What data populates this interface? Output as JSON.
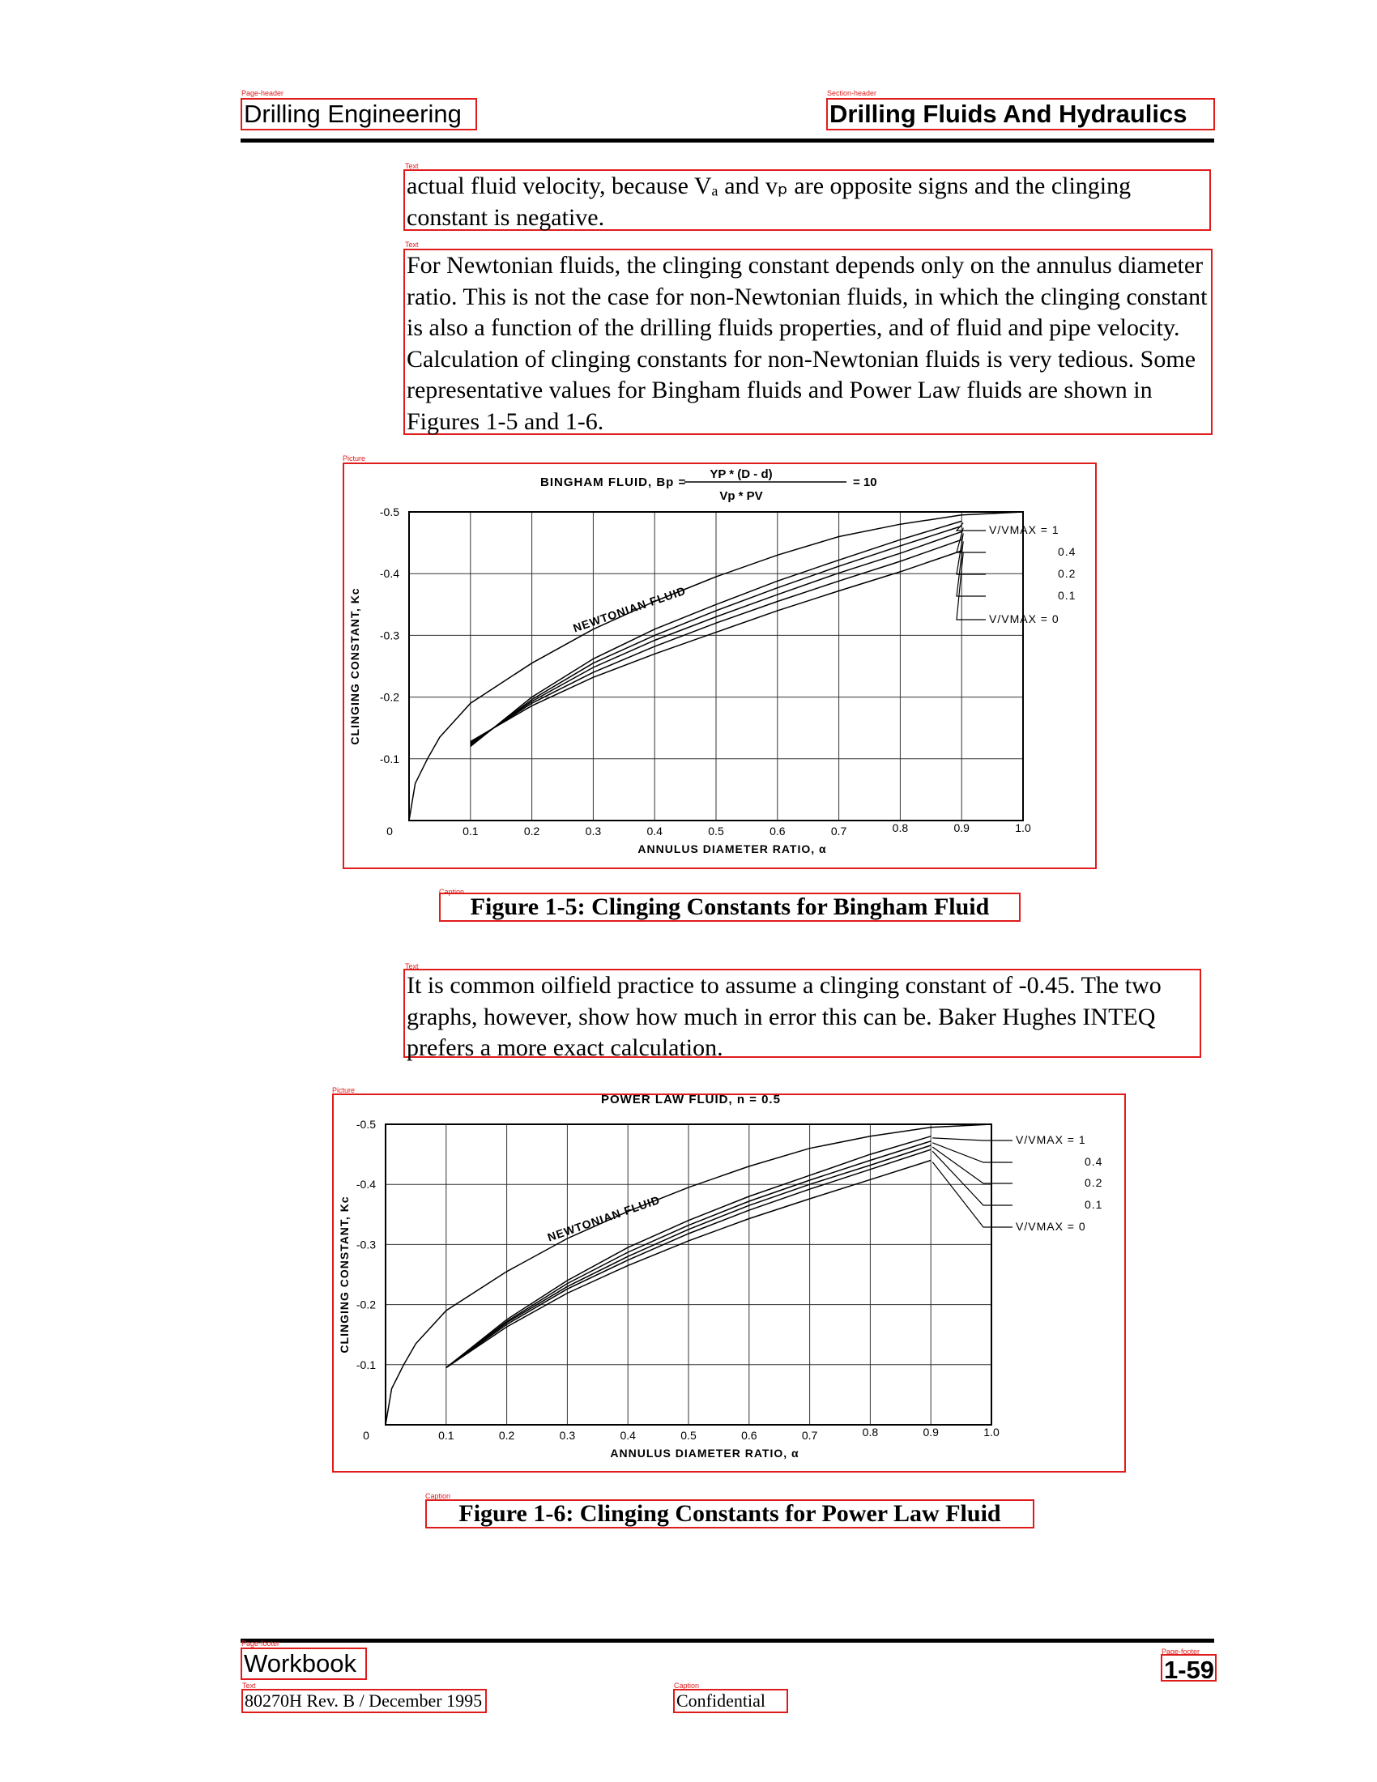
{
  "header": {
    "left": "Drilling Engineering",
    "right": "Drilling Fluids And Hydraulics"
  },
  "paragraphs": {
    "p1": "actual fluid velocity, because Vₐ and vₚ are opposite signs and the clinging constant is negative.",
    "p2": "For Newtonian fluids, the clinging constant depends only on the annulus diameter ratio. This is not the case for non-Newtonian fluids, in which the clinging constant is also a function of the drilling fluids properties, and of fluid and pipe velocity. Calculation of clinging constants for non-Newtonian fluids is very tedious. Some representative values for Bingham fluids and Power Law fluids are shown in Figures 1-5 and 1-6.",
    "p3": "It is common oilfield practice to assume a clinging constant of -0.45. The two graphs, however, show how much in error this can be. Baker Hughes INTEQ prefers a more exact calculation."
  },
  "captions": {
    "fig1": "Figure 1-5: Clinging Constants for Bingham Fluid",
    "fig2": "Figure 1-6: Clinging Constants for Power Law Fluid"
  },
  "footer": {
    "left": "Workbook",
    "right": "1-59",
    "doc_id": "80270H Rev. B / December 1995",
    "center": "Confidential"
  },
  "layout_tags": {
    "page_header": "Page-header",
    "section_header": "Section-header",
    "text": "Text",
    "picture": "Picture",
    "caption": "Caption",
    "page_footer": "Page-footer"
  },
  "chart_data": [
    {
      "type": "line",
      "title": "BINGHAM FLUID, Bp = YP * (D - d) / Vp * PV = 10",
      "title_parts": {
        "prefix": "BINGHAM FLUID, Bp =",
        "numerator": "YP * (D - d)",
        "denominator": "Vp * PV",
        "value": "= 10"
      },
      "xlabel": "ANNULUS DIAMETER RATIO, α",
      "ylabel": "CLINGING CONSTANT, Kc",
      "xlim": [
        0,
        1.0
      ],
      "ylim": [
        0,
        -0.5
      ],
      "x_ticks": [
        "0",
        "0.1",
        "0.2",
        "0.3",
        "0.4",
        "0.5",
        "0.6",
        "0.7",
        "0.8",
        "0.9",
        "1.0"
      ],
      "y_ticks": [
        "0",
        "-0.1",
        "-0.2",
        "-0.3",
        "-0.4",
        "-0.5"
      ],
      "grid": true,
      "annotation": "NEWTONIAN FLUID",
      "series_labels": [
        "V/VMAX = 1",
        "0.4",
        "0.2",
        "0.1",
        "V/VMAX = 0"
      ],
      "newtonian": {
        "x": [
          0,
          0.01,
          0.03,
          0.05,
          0.1,
          0.2,
          0.3,
          0.4,
          0.5,
          0.6,
          0.7,
          0.8,
          0.9,
          1.0
        ],
        "y": [
          0,
          -0.06,
          -0.1,
          -0.135,
          -0.19,
          -0.255,
          -0.31,
          -0.355,
          -0.395,
          -0.43,
          -0.46,
          -0.48,
          -0.495,
          -0.5
        ]
      },
      "curves": [
        {
          "x": [
            0.1,
            0.2,
            0.3,
            0.4,
            0.5,
            0.6,
            0.7,
            0.8,
            0.9
          ],
          "y": [
            -0.12,
            -0.2,
            -0.262,
            -0.31,
            -0.35,
            -0.388,
            -0.422,
            -0.455,
            -0.485
          ]
        },
        {
          "x": [
            0.1,
            0.2,
            0.3,
            0.4,
            0.5,
            0.6,
            0.7,
            0.8,
            0.9
          ],
          "y": [
            -0.122,
            -0.196,
            -0.255,
            -0.3,
            -0.34,
            -0.377,
            -0.412,
            -0.445,
            -0.477
          ]
        },
        {
          "x": [
            0.1,
            0.2,
            0.3,
            0.4,
            0.5,
            0.6,
            0.7,
            0.8,
            0.9
          ],
          "y": [
            -0.124,
            -0.193,
            -0.248,
            -0.292,
            -0.33,
            -0.366,
            -0.401,
            -0.433,
            -0.468
          ]
        },
        {
          "x": [
            0.1,
            0.2,
            0.3,
            0.4,
            0.5,
            0.6,
            0.7,
            0.8,
            0.9
          ],
          "y": [
            -0.126,
            -0.19,
            -0.24,
            -0.282,
            -0.32,
            -0.355,
            -0.388,
            -0.42,
            -0.455
          ]
        },
        {
          "x": [
            0.1,
            0.2,
            0.3,
            0.4,
            0.5,
            0.6,
            0.7,
            0.8,
            0.9
          ],
          "y": [
            -0.128,
            -0.186,
            -0.232,
            -0.27,
            -0.305,
            -0.34,
            -0.372,
            -0.403,
            -0.437
          ]
        }
      ]
    },
    {
      "type": "line",
      "title": "POWER LAW FLUID, n = 0.5",
      "xlabel": "ANNULUS DIAMETER RATIO, α",
      "ylabel": "CLINGING CONSTANT, Kc",
      "xlim": [
        0,
        1.0
      ],
      "ylim": [
        0,
        -0.5
      ],
      "x_ticks": [
        "0",
        "0.1",
        "0.2",
        "0.3",
        "0.4",
        "0.5",
        "0.6",
        "0.7",
        "0.8",
        "0.9",
        "1.0"
      ],
      "y_ticks": [
        "0",
        "-0.1",
        "-0.2",
        "-0.3",
        "-0.4",
        "-0.5"
      ],
      "grid": true,
      "annotation": "NEWTONIAN FLUID",
      "series_labels": [
        "V/VMAX = 1",
        "0.4",
        "0.2",
        "0.1",
        "V/VMAX = 0"
      ],
      "newtonian": {
        "x": [
          0,
          0.01,
          0.03,
          0.05,
          0.1,
          0.2,
          0.3,
          0.4,
          0.5,
          0.6,
          0.7,
          0.8,
          0.9,
          1.0
        ],
        "y": [
          0,
          -0.06,
          -0.1,
          -0.135,
          -0.19,
          -0.255,
          -0.31,
          -0.355,
          -0.395,
          -0.43,
          -0.46,
          -0.48,
          -0.495,
          -0.5
        ]
      },
      "curves": [
        {
          "x": [
            0.1,
            0.2,
            0.3,
            0.4,
            0.5,
            0.6,
            0.7,
            0.8,
            0.9
          ],
          "y": [
            -0.095,
            -0.175,
            -0.24,
            -0.295,
            -0.34,
            -0.38,
            -0.415,
            -0.45,
            -0.48
          ]
        },
        {
          "x": [
            0.1,
            0.2,
            0.3,
            0.4,
            0.5,
            0.6,
            0.7,
            0.8,
            0.9
          ],
          "y": [
            -0.095,
            -0.172,
            -0.235,
            -0.287,
            -0.332,
            -0.372,
            -0.407,
            -0.44,
            -0.472
          ]
        },
        {
          "x": [
            0.1,
            0.2,
            0.3,
            0.4,
            0.5,
            0.6,
            0.7,
            0.8,
            0.9
          ],
          "y": [
            -0.095,
            -0.17,
            -0.23,
            -0.28,
            -0.325,
            -0.365,
            -0.4,
            -0.432,
            -0.465
          ]
        },
        {
          "x": [
            0.1,
            0.2,
            0.3,
            0.4,
            0.5,
            0.6,
            0.7,
            0.8,
            0.9
          ],
          "y": [
            -0.095,
            -0.167,
            -0.226,
            -0.274,
            -0.318,
            -0.357,
            -0.392,
            -0.425,
            -0.458
          ]
        },
        {
          "x": [
            0.1,
            0.2,
            0.3,
            0.4,
            0.5,
            0.6,
            0.7,
            0.8,
            0.9
          ],
          "y": [
            -0.095,
            -0.163,
            -0.219,
            -0.265,
            -0.306,
            -0.343,
            -0.376,
            -0.408,
            -0.44
          ]
        }
      ]
    }
  ]
}
